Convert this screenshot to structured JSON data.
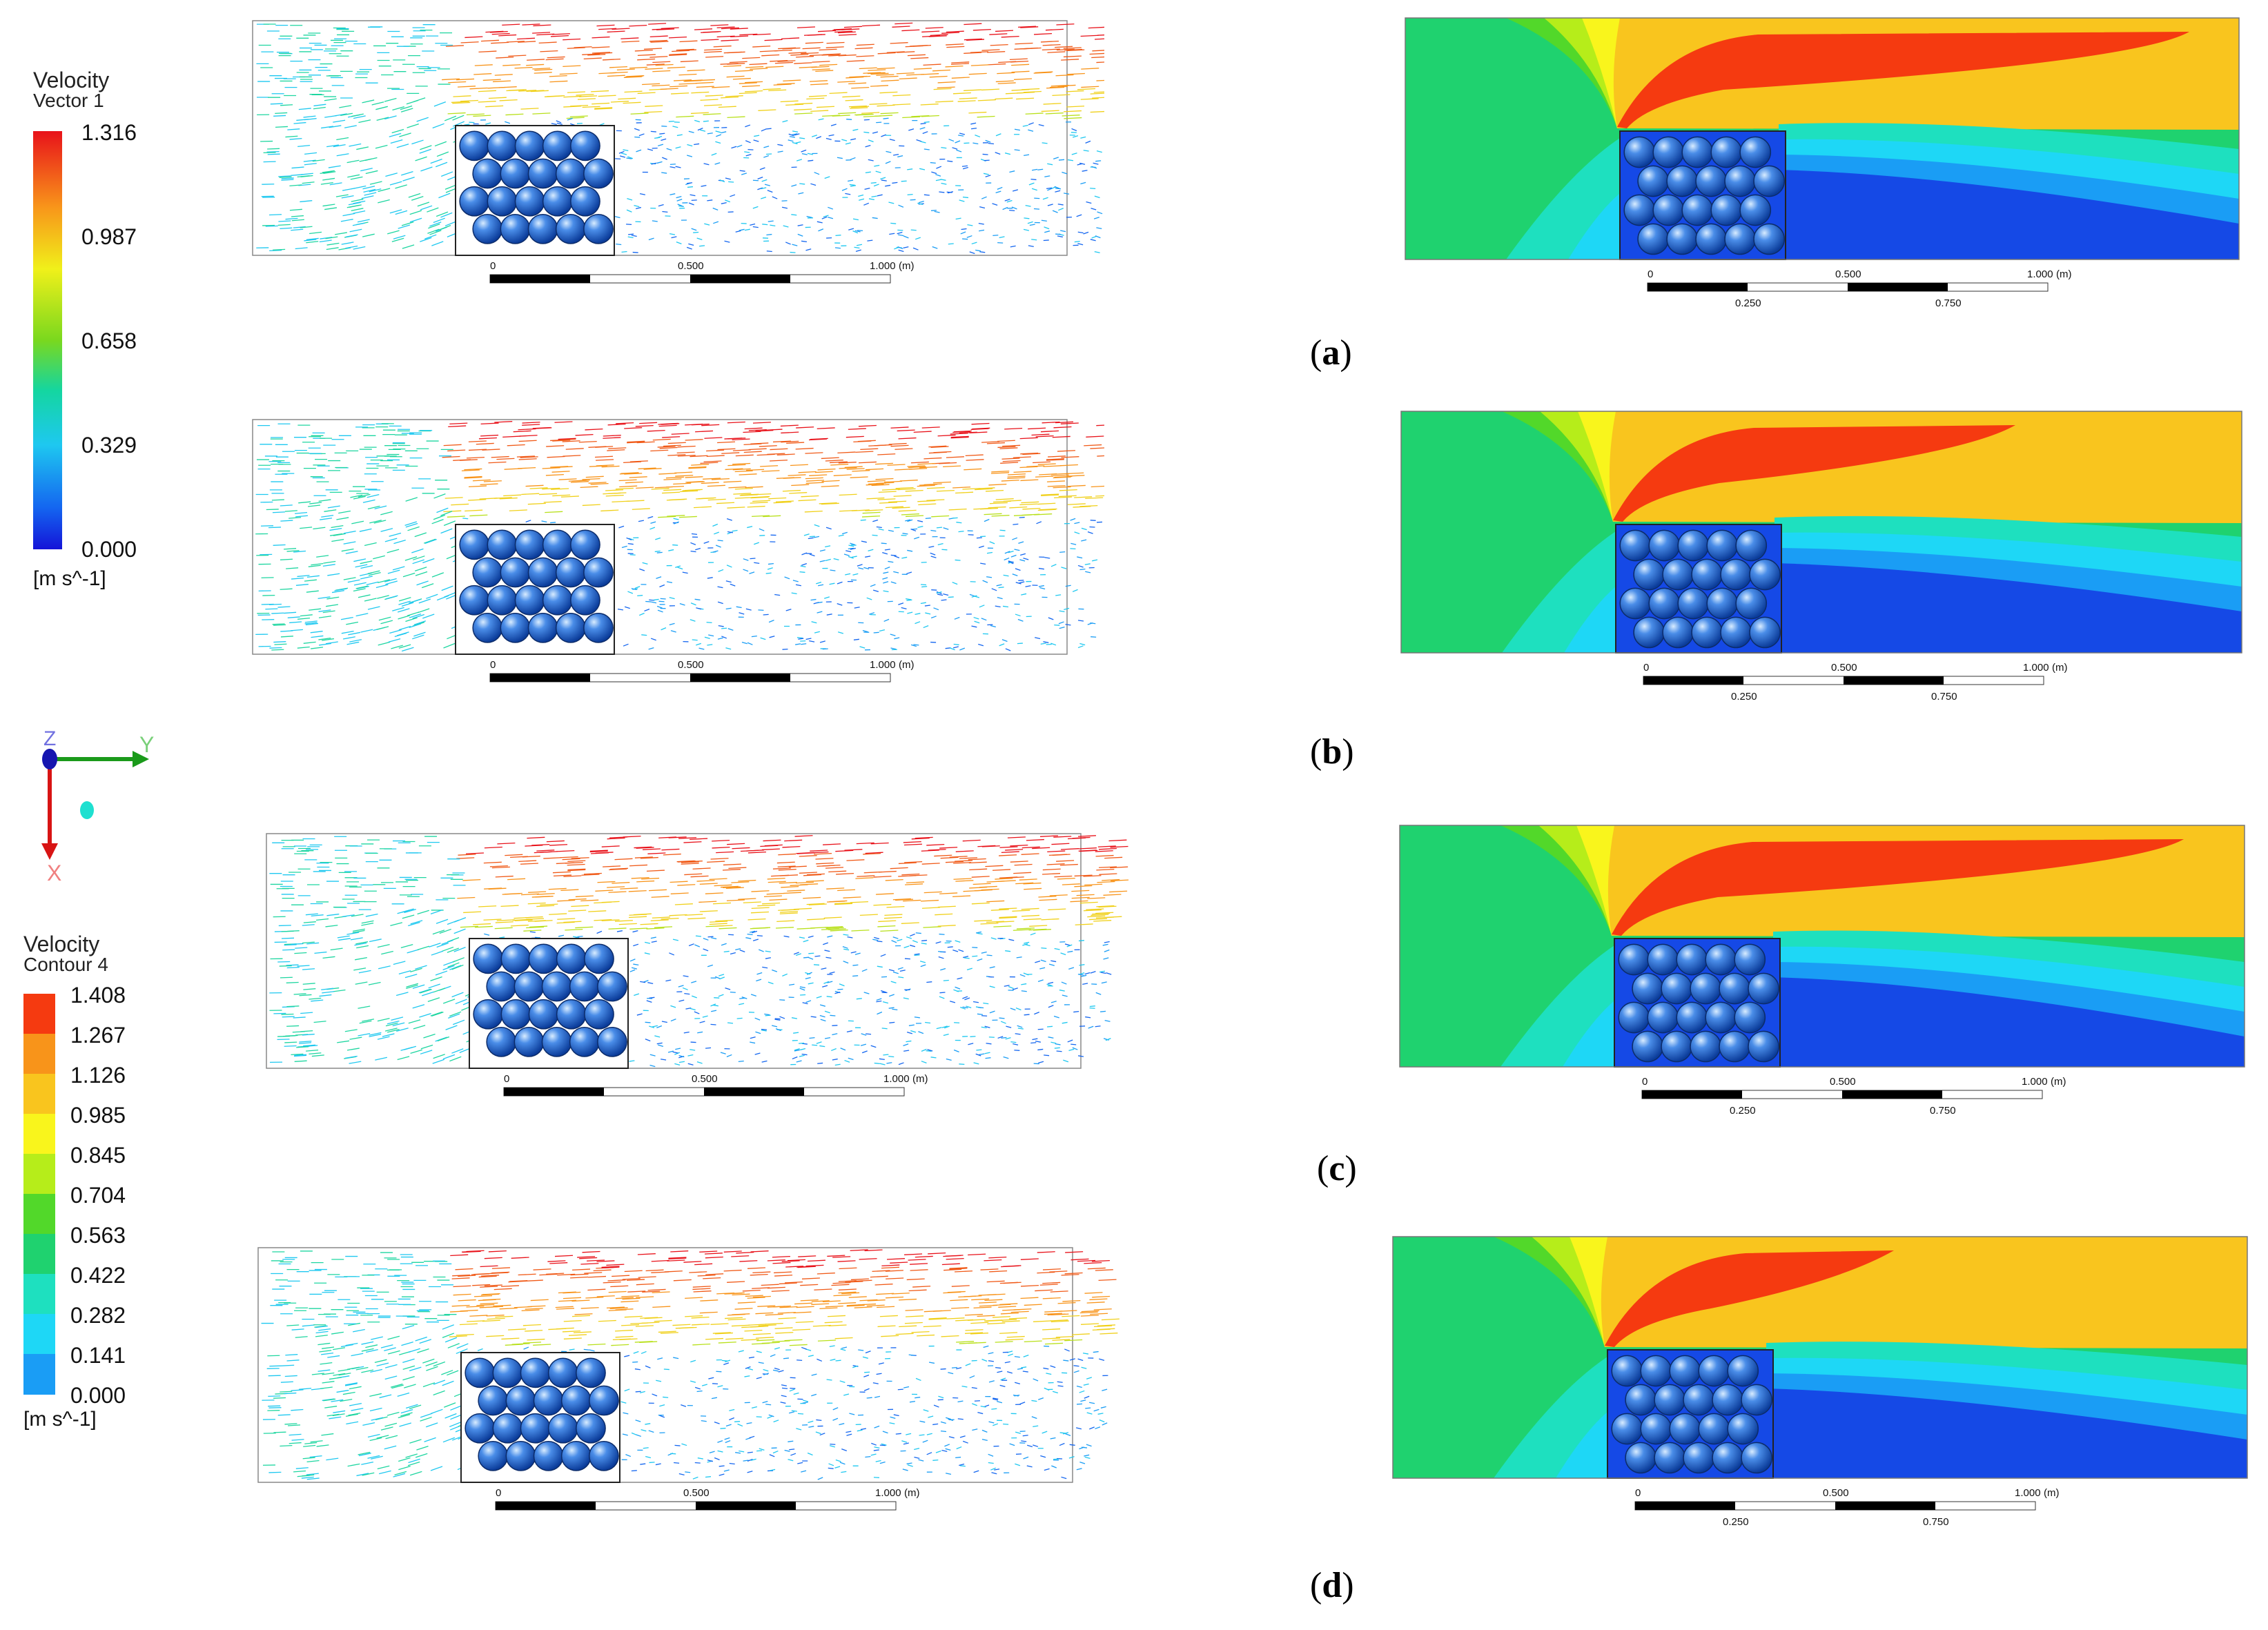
{
  "legend_vector": {
    "title_line1": "Velocity",
    "title_line2": "Vector 1",
    "ticks": [
      "1.316",
      "0.987",
      "0.658",
      "0.329",
      "0.000"
    ],
    "unit": "[m s^-1]"
  },
  "legend_contour": {
    "title_line1": "Velocity",
    "title_line2": "Contour 4",
    "ticks": [
      "1.408",
      "1.267",
      "1.126",
      "0.985",
      "0.845",
      "0.704",
      "0.563",
      "0.422",
      "0.282",
      "0.141",
      "0.000"
    ],
    "colors": [
      "#f53a10",
      "#f8941a",
      "#f9c51e",
      "#f9f51c",
      "#b6ed1a",
      "#52d82a",
      "#1fd26f",
      "#1ee0bf",
      "#1ed7f6",
      "#1a9df5",
      "#1549e6"
    ],
    "unit": "[m s^-1]"
  },
  "axis_triad": {
    "z": "Z",
    "y": "Y",
    "x": "X"
  },
  "scale_bar": {
    "t0": "0",
    "t1": "0.500",
    "t2": "1.000",
    "unit": "(m)",
    "b1": "0.250",
    "b2": "0.750"
  },
  "panel_labels": [
    "a",
    "b",
    "c",
    "d"
  ]
}
